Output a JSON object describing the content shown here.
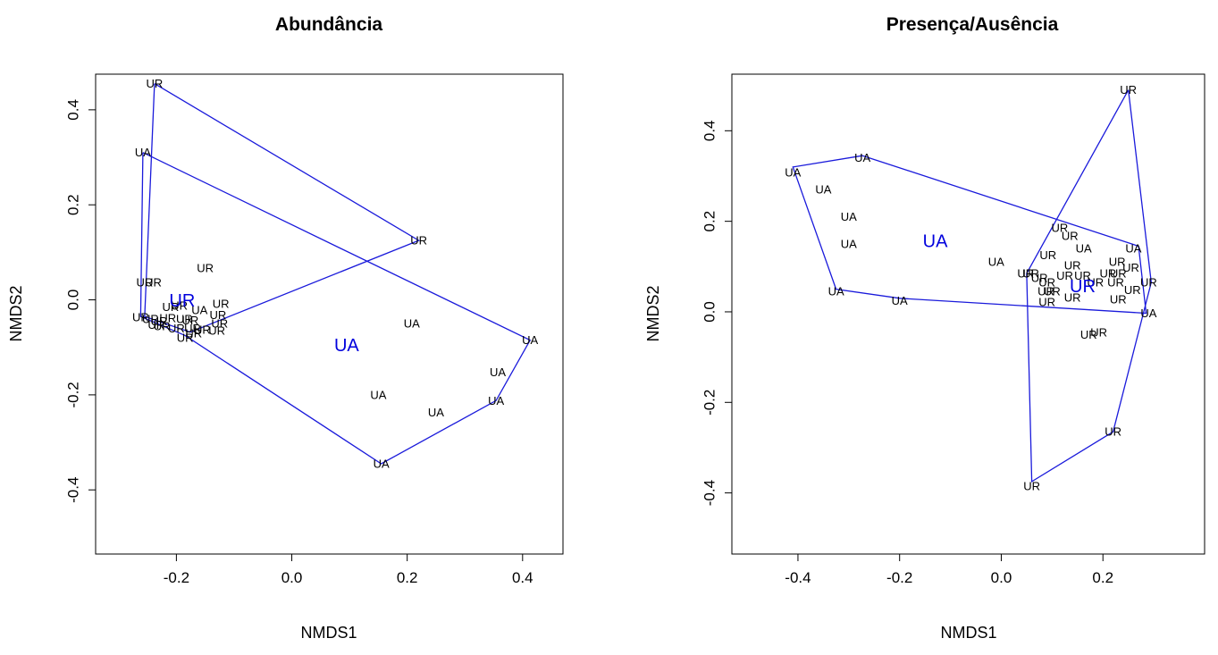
{
  "chart_data": [
    {
      "type": "scatter",
      "title": "Abundância",
      "xlabel": "NMDS1",
      "ylabel": "NMDS2",
      "xlim": [
        -0.34,
        0.47
      ],
      "ylim": [
        -0.535,
        0.475
      ],
      "xticks": [
        -0.2,
        0.0,
        0.2,
        0.4
      ],
      "xtick_labels": [
        "-0.2",
        "0.0",
        "0.2",
        "0.4"
      ],
      "yticks": [
        -0.4,
        -0.2,
        0.0,
        0.2,
        0.4
      ],
      "ytick_labels": [
        "-0.4",
        "-0.2",
        "0.0",
        "0.2",
        "0.4"
      ],
      "grid": false,
      "points": [
        {
          "label": "UR",
          "x": -0.238,
          "y": 0.455
        },
        {
          "label": "UA",
          "x": -0.258,
          "y": 0.31
        },
        {
          "label": "UR",
          "x": 0.22,
          "y": 0.125
        },
        {
          "label": "UR",
          "x": -0.15,
          "y": 0.067
        },
        {
          "label": "UR",
          "x": -0.255,
          "y": 0.037
        },
        {
          "label": "UR",
          "x": -0.24,
          "y": 0.037
        },
        {
          "label": "UR",
          "x": -0.123,
          "y": -0.008
        },
        {
          "label": "UR",
          "x": -0.21,
          "y": -0.015
        },
        {
          "label": "UR",
          "x": -0.195,
          "y": -0.012
        },
        {
          "label": "UA",
          "x": -0.16,
          "y": -0.022
        },
        {
          "label": "UR",
          "x": -0.128,
          "y": -0.032
        },
        {
          "label": "UR",
          "x": -0.262,
          "y": -0.037
        },
        {
          "label": "UR",
          "x": -0.245,
          "y": -0.04
        },
        {
          "label": "UR",
          "x": -0.23,
          "y": -0.045
        },
        {
          "label": "UR",
          "x": -0.215,
          "y": -0.038
        },
        {
          "label": "UR",
          "x": -0.186,
          "y": -0.04
        },
        {
          "label": "UR",
          "x": -0.176,
          "y": -0.043
        },
        {
          "label": "UR",
          "x": -0.125,
          "y": -0.05
        },
        {
          "label": "UR",
          "x": -0.235,
          "y": -0.053
        },
        {
          "label": "UR",
          "x": -0.225,
          "y": -0.055
        },
        {
          "label": "UR",
          "x": -0.2,
          "y": -0.06
        },
        {
          "label": "UR",
          "x": -0.172,
          "y": -0.06
        },
        {
          "label": "UR",
          "x": -0.155,
          "y": -0.063
        },
        {
          "label": "UR",
          "x": -0.13,
          "y": -0.065
        },
        {
          "label": "UR",
          "x": -0.185,
          "y": -0.08
        },
        {
          "label": "UR",
          "x": -0.17,
          "y": -0.07
        },
        {
          "label": "UA",
          "x": 0.208,
          "y": -0.05
        },
        {
          "label": "UA",
          "x": 0.413,
          "y": -0.085
        },
        {
          "label": "UA",
          "x": 0.357,
          "y": -0.152
        },
        {
          "label": "UA",
          "x": 0.15,
          "y": -0.2
        },
        {
          "label": "UA",
          "x": 0.354,
          "y": -0.212
        },
        {
          "label": "UA",
          "x": 0.25,
          "y": -0.237
        },
        {
          "label": "UA",
          "x": 0.155,
          "y": -0.345
        }
      ],
      "centroids": [
        {
          "label": "UR",
          "x": -0.19,
          "y": -0.003
        },
        {
          "label": "UA",
          "x": 0.095,
          "y": -0.097
        }
      ],
      "hulls": [
        {
          "name": "UR",
          "points": [
            [
              -0.238,
              0.455
            ],
            [
              0.22,
              0.125
            ],
            [
              -0.176,
              -0.068
            ],
            [
              -0.255,
              -0.035
            ],
            [
              -0.238,
              0.455
            ]
          ]
        },
        {
          "name": "UA",
          "points": [
            [
              -0.258,
              0.31
            ],
            [
              0.413,
              -0.085
            ],
            [
              0.354,
              -0.212
            ],
            [
              0.155,
              -0.345
            ],
            [
              -0.185,
              -0.075
            ],
            [
              -0.262,
              -0.035
            ],
            [
              -0.258,
              0.31
            ]
          ]
        }
      ]
    },
    {
      "type": "scatter",
      "title": "Presença/Ausência",
      "xlabel": "NMDS1",
      "ylabel": "NMDS2",
      "xlim": [
        -0.53,
        0.4
      ],
      "ylim": [
        -0.535,
        0.525
      ],
      "xticks": [
        -0.4,
        -0.2,
        0.0,
        0.2
      ],
      "xtick_labels": [
        "-0.4",
        "-0.2",
        "0.0",
        "0.2"
      ],
      "yticks": [
        -0.4,
        -0.2,
        0.0,
        0.2,
        0.4
      ],
      "ytick_labels": [
        "-0.4",
        "-0.2",
        "0.0",
        "0.2",
        "0.4"
      ],
      "grid": false,
      "points": [
        {
          "label": "UR",
          "x": 0.25,
          "y": 0.49
        },
        {
          "label": "UA",
          "x": -0.273,
          "y": 0.34
        },
        {
          "label": "UA",
          "x": -0.41,
          "y": 0.308
        },
        {
          "label": "UA",
          "x": -0.35,
          "y": 0.27
        },
        {
          "label": "UA",
          "x": -0.3,
          "y": 0.21
        },
        {
          "label": "UR",
          "x": 0.115,
          "y": 0.185
        },
        {
          "label": "UR",
          "x": 0.135,
          "y": 0.168
        },
        {
          "label": "UA",
          "x": -0.3,
          "y": 0.15
        },
        {
          "label": "UA",
          "x": 0.26,
          "y": 0.14
        },
        {
          "label": "UA",
          "x": 0.162,
          "y": 0.14
        },
        {
          "label": "UR",
          "x": 0.092,
          "y": 0.125
        },
        {
          "label": "UR",
          "x": 0.228,
          "y": 0.11
        },
        {
          "label": "UA",
          "x": -0.01,
          "y": 0.11
        },
        {
          "label": "UR",
          "x": 0.14,
          "y": 0.103
        },
        {
          "label": "UR",
          "x": 0.255,
          "y": 0.098
        },
        {
          "label": "UR",
          "x": 0.048,
          "y": 0.085
        },
        {
          "label": "UR",
          "x": 0.058,
          "y": 0.085
        },
        {
          "label": "UR",
          "x": 0.21,
          "y": 0.085
        },
        {
          "label": "UR",
          "x": 0.23,
          "y": 0.085
        },
        {
          "label": "UR",
          "x": 0.075,
          "y": 0.075
        },
        {
          "label": "UR",
          "x": 0.125,
          "y": 0.08
        },
        {
          "label": "UR",
          "x": 0.16,
          "y": 0.08
        },
        {
          "label": "UR",
          "x": 0.09,
          "y": 0.065
        },
        {
          "label": "UR",
          "x": 0.185,
          "y": 0.065
        },
        {
          "label": "UR",
          "x": 0.225,
          "y": 0.065
        },
        {
          "label": "UR",
          "x": 0.29,
          "y": 0.065
        },
        {
          "label": "UA",
          "x": -0.325,
          "y": 0.045
        },
        {
          "label": "UR",
          "x": 0.088,
          "y": 0.045
        },
        {
          "label": "UR",
          "x": 0.1,
          "y": 0.045
        },
        {
          "label": "UR",
          "x": 0.258,
          "y": 0.048
        },
        {
          "label": "UR",
          "x": 0.14,
          "y": 0.032
        },
        {
          "label": "UR",
          "x": 0.23,
          "y": 0.028
        },
        {
          "label": "UA",
          "x": -0.2,
          "y": 0.025
        },
        {
          "label": "UR",
          "x": 0.09,
          "y": 0.022
        },
        {
          "label": "UA",
          "x": 0.29,
          "y": -0.003
        },
        {
          "label": "UR",
          "x": 0.192,
          "y": -0.045
        },
        {
          "label": "UR",
          "x": 0.172,
          "y": -0.05
        },
        {
          "label": "UR",
          "x": 0.22,
          "y": -0.265
        },
        {
          "label": "UR",
          "x": 0.06,
          "y": -0.385
        }
      ],
      "centroids": [
        {
          "label": "UA",
          "x": -0.13,
          "y": 0.155
        },
        {
          "label": "UR",
          "x": 0.16,
          "y": 0.055
        }
      ],
      "hulls": [
        {
          "name": "UA",
          "points": [
            [
              -0.273,
              0.345
            ],
            [
              0.27,
              0.145
            ],
            [
              0.285,
              -0.003
            ],
            [
              -0.2,
              0.03
            ],
            [
              -0.325,
              0.05
            ],
            [
              -0.41,
              0.32
            ],
            [
              -0.273,
              0.345
            ]
          ]
        },
        {
          "name": "UR",
          "points": [
            [
              0.25,
              0.49
            ],
            [
              0.295,
              0.065
            ],
            [
              0.22,
              -0.265
            ],
            [
              0.06,
              -0.375
            ],
            [
              0.05,
              0.085
            ],
            [
              0.25,
              0.49
            ]
          ]
        }
      ]
    }
  ]
}
